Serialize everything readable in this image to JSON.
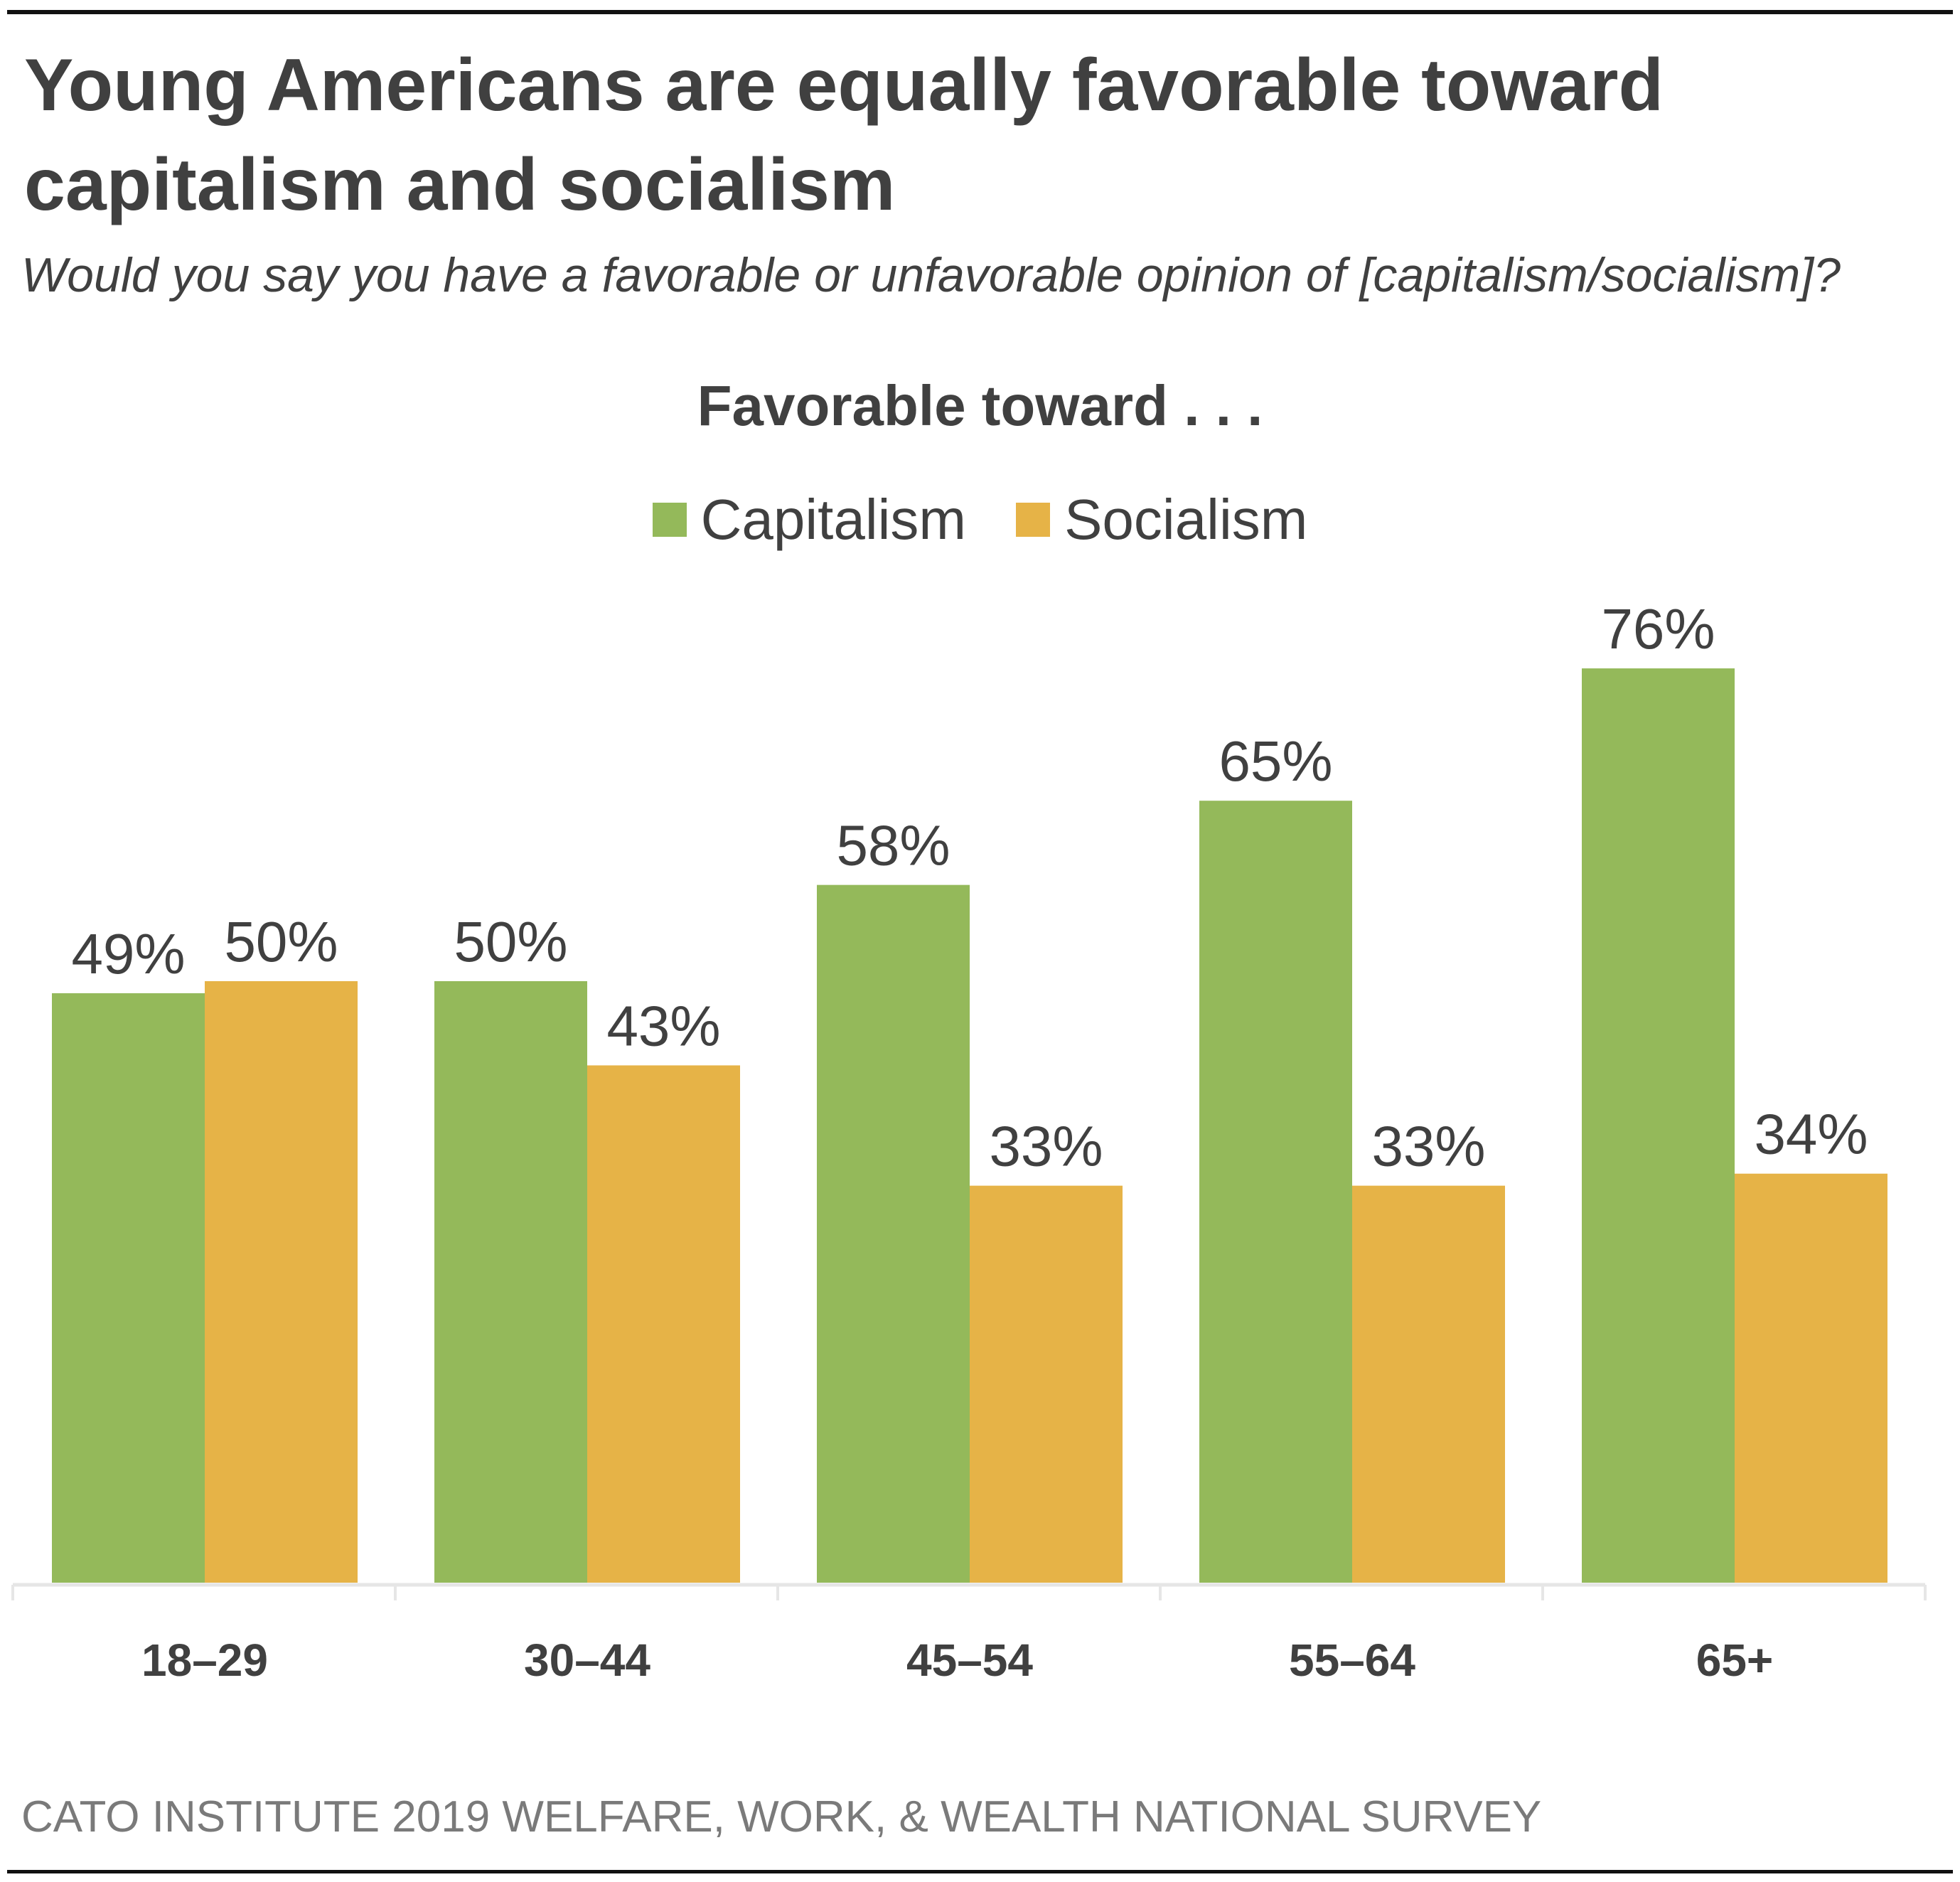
{
  "title": "Young Americans are equally favorable toward capitalism and socialism",
  "subtitle": "Would you say you have a favorable or unfavorable opinion of [capitalism/socialism]?",
  "footer": "CATO INSTITUTE 2019 WELFARE, WORK, & WEALTH NATIONAL SURVEY",
  "chart_data": {
    "type": "bar",
    "title": "Favorable toward . . .",
    "categories": [
      "18–29",
      "30–44",
      "45–54",
      "55–64",
      "65+"
    ],
    "series": [
      {
        "name": "Capitalism",
        "color": "#94b95a",
        "values": [
          49,
          50,
          58,
          65,
          76
        ],
        "labels": [
          "49%",
          "50%",
          "58%",
          "65%",
          "76%"
        ]
      },
      {
        "name": "Socialism",
        "color": "#e6b347",
        "values": [
          50,
          43,
          33,
          33,
          34
        ],
        "labels": [
          "50%",
          "43%",
          "33%",
          "33%",
          "34%"
        ]
      }
    ],
    "ylim": [
      0,
      80
    ],
    "grid": false,
    "legend": "top-center",
    "xlabel": "",
    "ylabel": ""
  }
}
